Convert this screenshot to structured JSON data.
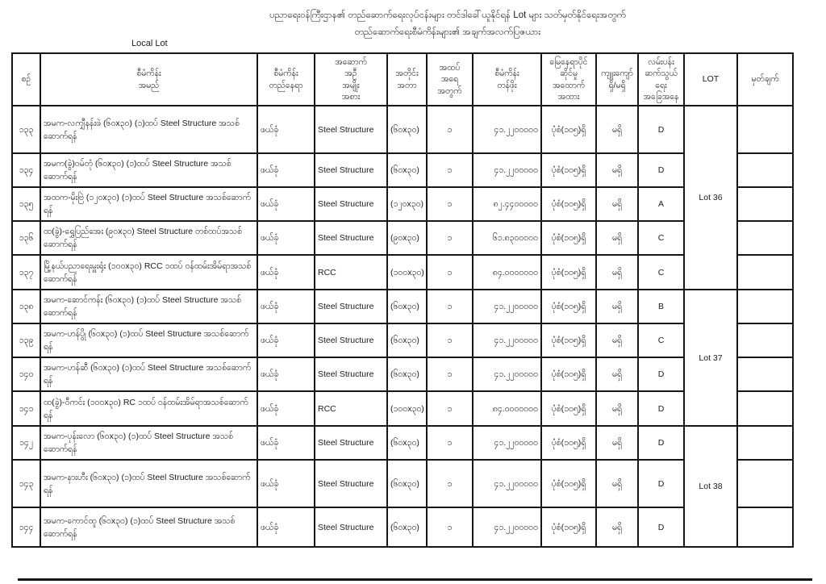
{
  "page": {
    "title_line1": "ပညာရေးဝန်ကြီးဌာန၏ တည်ဆောက်ရေးလုပ်ငန်းများ တင်ဒါခေါ်ယူနိုင်ရန် Lot များ သတ်မှတ်နိုင်ရေးအတွက်",
    "title_line2": "တည်ဆောက်ရေးစီမံကိန်းများ၏ အချက်အလက်ပြဇယား",
    "corner_label": "Local Lot"
  },
  "table": {
    "headers": [
      {
        "key": "no",
        "label": "စဉ်"
      },
      {
        "key": "name",
        "label": "စီမံကိန်း\nအမည်"
      },
      {
        "key": "location",
        "label": "စီမံကိန်း\nတည်နေရာ"
      },
      {
        "key": "building_type",
        "label": "အဆောက်\nအဦ\nအမျိုး\nအစား"
      },
      {
        "key": "dimension",
        "label": "အတိုင်း\nအတာ"
      },
      {
        "key": "floors",
        "label": "အထပ်\nအရေ\nအတွက်"
      },
      {
        "key": "value",
        "label": "စီမံကိန်း\nတန်ဖိုး"
      },
      {
        "key": "ownership",
        "label": "မြေနေရာပိုင်\nဆိုင်မှု\nအထောက်\nအထား"
      },
      {
        "key": "encroachment",
        "label": "ကျူးကျော်\nရှိ/မရှိ"
      },
      {
        "key": "road",
        "label": "လမ်းပန်း\nဆက်သွယ်\nရေး\nအခြေအနေ"
      },
      {
        "key": "lot",
        "label": "LOT"
      },
      {
        "key": "remark",
        "label": "မှတ်ချက်"
      }
    ],
    "rows": [
      {
        "no": "၁၃၃",
        "name": "အမက-လကျှီနန်းဖဲ (၆၀x၃၀) (၁)ထပ် Steel Structure အသစ်ဆောက်ရန်",
        "location": "ဖယ်ခုံ",
        "building_type": "Steel Structure",
        "dimension": "(၆၀x၃၀)",
        "floors": "၁",
        "value": "၄၁.၂၂၀၀၀၀၀",
        "ownership": "ပုံစံ(၁၀၅)ရှိ",
        "encroachment": "မရှိ",
        "road": "D",
        "remark": ""
      },
      {
        "no": "၁၃၄",
        "name": "အမက(ခွဲ)ဝမ်တုံ (၆၀x၃၀) (၁)ထပ် Steel Structure အသစ်ဆောက်ရန်",
        "location": "ဖယ်ခုံ",
        "building_type": "Steel Structure",
        "dimension": "(၆၀x၃၀)",
        "floors": "၁",
        "value": "၄၁.၂၂၀၀၀၀၀",
        "ownership": "ပုံစံ(၁၀၅)ရှိ",
        "encroachment": "မရှိ",
        "road": "D",
        "remark": ""
      },
      {
        "no": "၁၃၅",
        "name": "အထက-မိုးဗြဲ (၁၂၀x၃၀) (၁)ထပ် Steel Structure အသစ်ဆောက်ရန်",
        "location": "ဖယ်ခုံ",
        "building_type": "Steel Structure",
        "dimension": "(၁၂၀x၃၀)",
        "floors": "၁",
        "value": "၈၂.၄၄၀၀၀၀၀",
        "ownership": "ပုံစံ(၁၀၅)ရှိ",
        "encroachment": "မရှိ",
        "road": "A",
        "remark": ""
      },
      {
        "no": "၁၃၆",
        "name": "ထ(ခွဲ)-ရွှေပြည်အေး (၉၀x၃၀) Steel Structure တစ်ထပ်အသစ် ဆောက်ရန်",
        "location": "ဖယ်ခုံ",
        "building_type": "Steel Structure",
        "dimension": "(၉၀x၃၀)",
        "floors": "၁",
        "value": "၆၁.၈၃၀၀၀၀၀",
        "ownership": "ပုံစံ(၁၀၅)ရှိ",
        "encroachment": "မရှိ",
        "road": "C",
        "remark": ""
      },
      {
        "no": "၁၃၇",
        "name": "မြို့နယ်ပညာရေးမှူးရုံး (၁၀၀x၃၀) RCC ၁ထပ် ဝန်ထမ်းအိမ်ရာအသစ်ဆောက်ရန်",
        "location": "ဖယ်ခုံ",
        "building_type": "RCC",
        "dimension": "(၁၀၀x၃၀)",
        "floors": "၁",
        "value": "၈၄.၀၀၀၀၀၀၀",
        "ownership": "ပုံစံ(၁၀၅)ရှိ",
        "encroachment": "မရှိ",
        "road": "C",
        "remark": ""
      },
      {
        "no": "၁၃၈",
        "name": "အမက-ဆောင်ကန်း (၆၀x၃၀) (၁)ထပ် Steel Structure အသစ်ဆောက်ရန်",
        "location": "ဖယ်ခုံ",
        "building_type": "Steel Structure",
        "dimension": "(၆၀x၃၀)",
        "floors": "၁",
        "value": "၄၁.၂၂၀၀၀၀၀",
        "ownership": "ပုံစံ(၁၀၅)ရှိ",
        "encroachment": "မရှိ",
        "road": "B",
        "remark": ""
      },
      {
        "no": "၁၃၉",
        "name": "အမက-ဟန်ပွို (၆၀x၃၀) (၁)ထပ် Steel Structure အသစ်ဆောက်ရန်",
        "location": "ဖယ်ခုံ",
        "building_type": "Steel Structure",
        "dimension": "(၆၀x၃၀)",
        "floors": "၁",
        "value": "၄၁.၂၂၀၀၀၀၀",
        "ownership": "ပုံစံ(၁၀၅)ရှိ",
        "encroachment": "မရှိ",
        "road": "C",
        "remark": ""
      },
      {
        "no": "၁၄၀",
        "name": "အမက-ဟန်ဆီ (၆၀x၃၀) (၁)ထပ် Steel Structure အသစ်ဆောက်ရန်",
        "location": "ဖယ်ခုံ",
        "building_type": "Steel Structure",
        "dimension": "(၆၀x၃၀)",
        "floors": "၁",
        "value": "၄၁.၂၂၀၀၀၀၀",
        "ownership": "ပုံစံ(၁၀၅)ရှိ",
        "encroachment": "မရှိ",
        "road": "D",
        "remark": ""
      },
      {
        "no": "၁၄၁",
        "name": "ထ(ခွဲ)-ဝီကင်း (၁၀၀x၃၀)  RC ၁ထပ် ဝန်ထမ်းအိမ်ရာအသစ်ဆောက်ရန်",
        "location": "ဖယ်ခုံ",
        "building_type": "RCC",
        "dimension": "(၁၀၀x၃၀)",
        "floors": "၁",
        "value": "၈၄.၀၀၀၀၀၀၀",
        "ownership": "ပုံစံ(၁၀၅)ရှိ",
        "encroachment": "မရှိ",
        "road": "D",
        "remark": ""
      },
      {
        "no": "၁၄၂",
        "name": "အမက-ပုန်းလော (၆၀x၃၀) (၁)ထပ် Steel Structure အသစ်ဆောက်ရန်",
        "location": "ဖယ်ခုံ",
        "building_type": "Steel Structure",
        "dimension": "(၆၀x၃၀)",
        "floors": "၁",
        "value": "၄၁.၂၂၀၀၀၀၀",
        "ownership": "ပုံစံ(၁၀၅)ရှိ",
        "encroachment": "မရှိ",
        "road": "D",
        "remark": ""
      },
      {
        "no": "၁၄၃",
        "name": "အမက-နားဟီး (၆၀x၃၀) (၁)ထပ် Steel Structure အသစ်ဆောက်ရန်",
        "location": "ဖယ်ခုံ",
        "building_type": "Steel Structure",
        "dimension": "(၆၀x၃၀)",
        "floors": "၁",
        "value": "၄၁.၂၂၀၀၀၀၀",
        "ownership": "ပုံစံ(၁၀၅)ရှိ",
        "encroachment": "မရှိ",
        "road": "D",
        "remark": ""
      },
      {
        "no": "၁၄၄",
        "name": "အမက-ကောင်ထူ (၆၀x၃၀) (၁)ထပ် Steel Structure အသစ်ဆောက်ရန်",
        "location": "ဖယ်ခုံ",
        "building_type": "Steel Structure",
        "dimension": "(၆၀x၃၀)",
        "floors": "၁",
        "value": "၄၁.၂၂၀၀၀၀၀",
        "ownership": "ပုံစံ(၁၀၅)ရှိ",
        "encroachment": "မရှိ",
        "road": "D",
        "remark": ""
      }
    ],
    "lot_groups": [
      {
        "label": "Lot 36",
        "start": 0,
        "span": 5
      },
      {
        "label": "Lot 37",
        "start": 5,
        "span": 4
      },
      {
        "label": "Lot 38",
        "start": 9,
        "span": 3
      }
    ]
  }
}
